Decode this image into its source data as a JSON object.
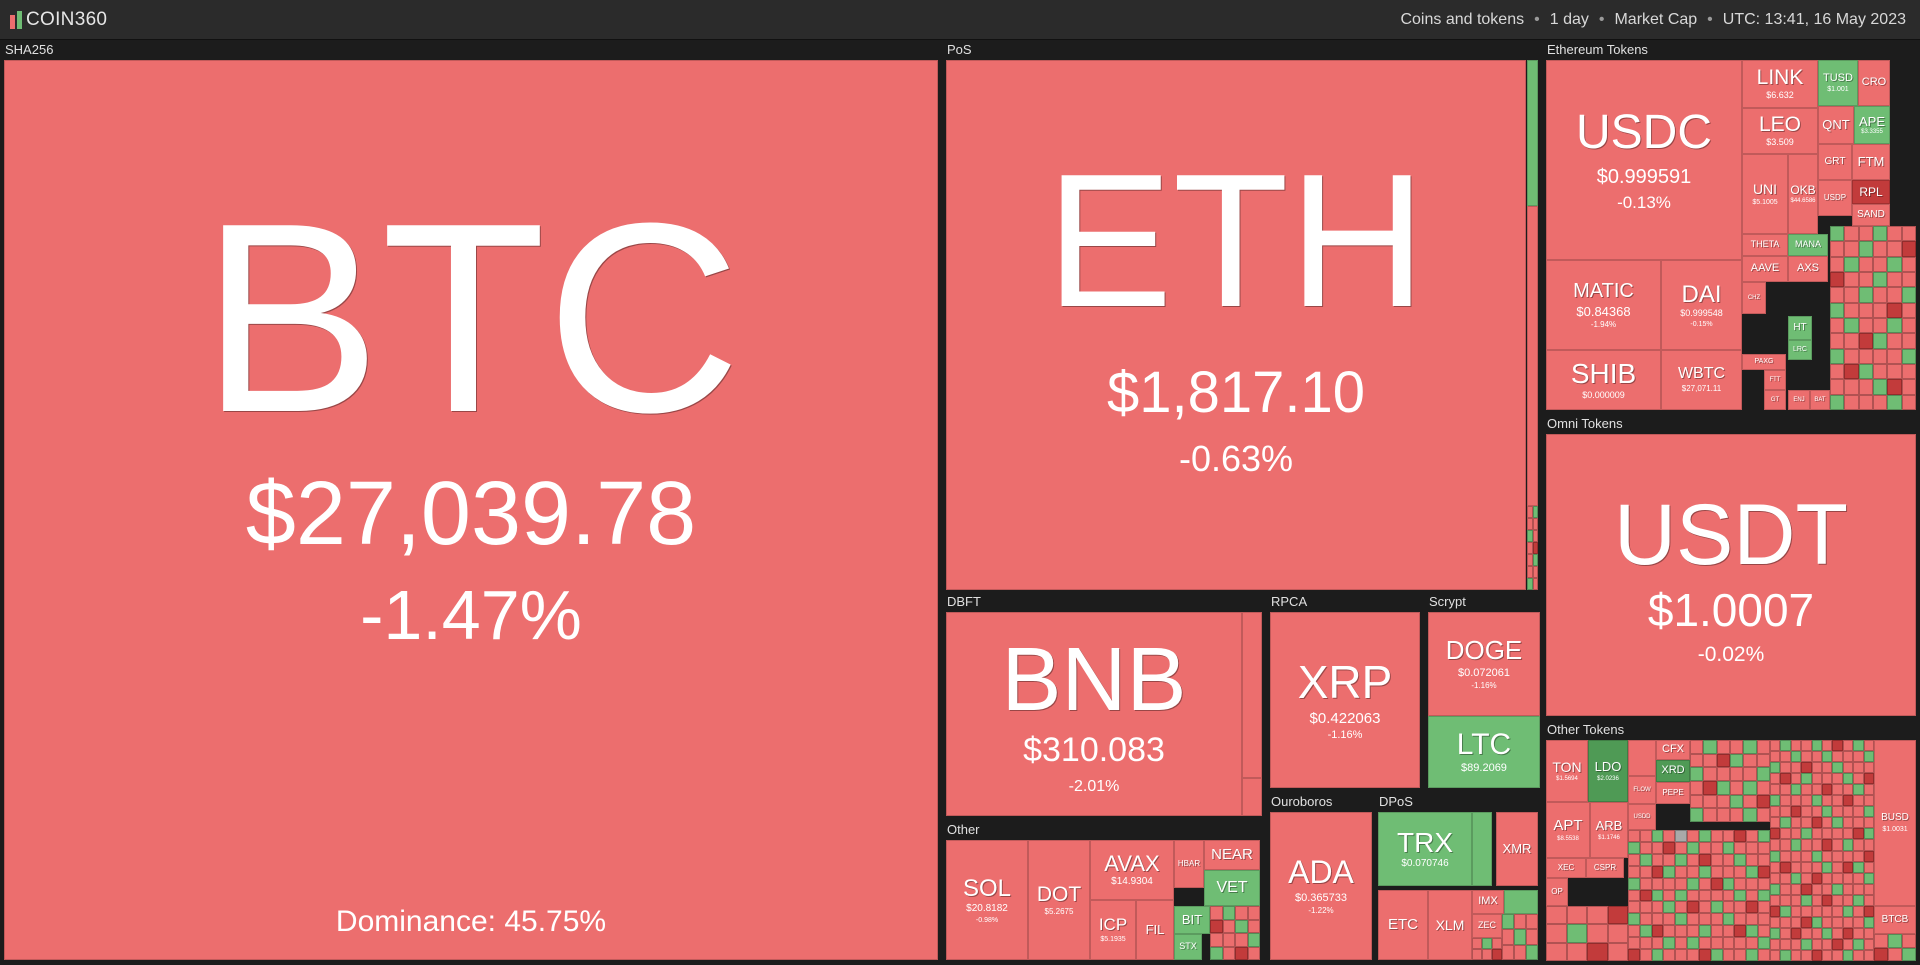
{
  "app": {
    "logo_text": "COIN360"
  },
  "menu": {
    "scope": "Coins and tokens",
    "period": "1 day",
    "metric": "Market Cap",
    "time": "UTC: 13:41, 16 May 2023",
    "separator": "•"
  },
  "colors": {
    "down": "#ec6e6e",
    "strong_down": "#c23b3b",
    "up": "#6fbd74",
    "strong_up": "#4f9a55",
    "neutral": "#a9a9a9"
  },
  "groups": {
    "sha256": "SHA256",
    "pos": "PoS",
    "eth_tokens": "Ethereum Tokens",
    "omni_tokens": "Omni Tokens",
    "dbft": "DBFT",
    "rpca": "RPCA",
    "scrypt": "Scrypt",
    "other": "Other",
    "ouroboros": "Ouroboros",
    "dpos": "DPoS",
    "other_tokens": "Other Tokens"
  },
  "coins": {
    "btc": {
      "sym": "BTC",
      "price": "$27,039.78",
      "chg": "-1.47%",
      "dominance": "Dominance: 45.75%"
    },
    "eth": {
      "sym": "ETH",
      "price": "$1,817.10",
      "chg": "-0.63%"
    },
    "usdc": {
      "sym": "USDC",
      "price": "$0.999591",
      "chg": "-0.13%"
    },
    "link": {
      "sym": "LINK",
      "price": "$6.632"
    },
    "leo": {
      "sym": "LEO",
      "price": "$3.509"
    },
    "uni": {
      "sym": "UNI",
      "price": "$5.1005"
    },
    "okb": {
      "sym": "OKB",
      "price": "$44.6586"
    },
    "tusd": {
      "sym": "TUSD",
      "price": "$1.001"
    },
    "cro": {
      "sym": "CRO"
    },
    "qnt": {
      "sym": "QNT"
    },
    "ape": {
      "sym": "APE",
      "price": "$3.3355"
    },
    "grt": {
      "sym": "GRT"
    },
    "ftm": {
      "sym": "FTM"
    },
    "usdp": {
      "sym": "USDP"
    },
    "rpl": {
      "sym": "RPL"
    },
    "sand": {
      "sym": "SAND"
    },
    "theta": {
      "sym": "THETA"
    },
    "mana": {
      "sym": "MANA"
    },
    "aave": {
      "sym": "AAVE"
    },
    "axs": {
      "sym": "AXS"
    },
    "chz": {
      "sym": "CHZ"
    },
    "ht": {
      "sym": "HT"
    },
    "lrc": {
      "sym": "LRC"
    },
    "paxg": {
      "sym": "PAXG"
    },
    "ftt": {
      "sym": "FTT"
    },
    "gt": {
      "sym": "GT"
    },
    "bat": {
      "sym": "BAT"
    },
    "enj": {
      "sym": "ENJ"
    },
    "matic": {
      "sym": "MATIC",
      "price": "$0.84368",
      "chg": "-1.94%"
    },
    "dai": {
      "sym": "DAI",
      "price": "$0.999548",
      "chg": "-0.15%"
    },
    "shib": {
      "sym": "SHIB",
      "price": "$0.000009"
    },
    "wbtc": {
      "sym": "WBTC",
      "price": "$27,071.11"
    },
    "usdt": {
      "sym": "USDT",
      "price": "$1.0007",
      "chg": "-0.02%"
    },
    "bnb": {
      "sym": "BNB",
      "price": "$310.083",
      "chg": "-2.01%"
    },
    "xrp": {
      "sym": "XRP",
      "price": "$0.422063",
      "chg": "-1.16%"
    },
    "doge": {
      "sym": "DOGE",
      "price": "$0.072061",
      "chg": "-1.16%"
    },
    "ltc": {
      "sym": "LTC",
      "price": "$89.2069"
    },
    "sol": {
      "sym": "SOL",
      "price": "$20.8182",
      "chg": "-0.98%"
    },
    "dot": {
      "sym": "DOT",
      "price": "$5.2675"
    },
    "avax": {
      "sym": "AVAX",
      "price": "$14.9304"
    },
    "near": {
      "sym": "NEAR"
    },
    "hbar": {
      "sym": "HBAR"
    },
    "vet": {
      "sym": "VET"
    },
    "icp": {
      "sym": "ICP",
      "price": "$5.1935"
    },
    "fil": {
      "sym": "FIL"
    },
    "bit": {
      "sym": "BIT"
    },
    "stx": {
      "sym": "STX"
    },
    "ada": {
      "sym": "ADA",
      "price": "$0.365733",
      "chg": "-1.22%"
    },
    "trx": {
      "sym": "TRX",
      "price": "$0.070746"
    },
    "xmr": {
      "sym": "XMR"
    },
    "etc": {
      "sym": "ETC"
    },
    "xlm": {
      "sym": "XLM"
    },
    "imx": {
      "sym": "IMX"
    },
    "zec": {
      "sym": "ZEC"
    },
    "ton": {
      "sym": "TON",
      "price": "$1.5694"
    },
    "ldo": {
      "sym": "LDO",
      "price": "$2.0236"
    },
    "cfx": {
      "sym": "CFX"
    },
    "xrd": {
      "sym": "XRD"
    },
    "pepe": {
      "sym": "PEPE"
    },
    "apt": {
      "sym": "APT",
      "price": "$8.5538"
    },
    "arb": {
      "sym": "ARB",
      "price": "$1.1746"
    },
    "busd": {
      "sym": "BUSD",
      "price": "$1.0031"
    },
    "btcb": {
      "sym": "BTCB"
    },
    "xec": {
      "sym": "XEC"
    },
    "cspr": {
      "sym": "CSPR"
    },
    "op": {
      "sym": "OP"
    },
    "usdd": {
      "sym": "USDD"
    },
    "flow": {
      "sym": "FLOW"
    }
  }
}
